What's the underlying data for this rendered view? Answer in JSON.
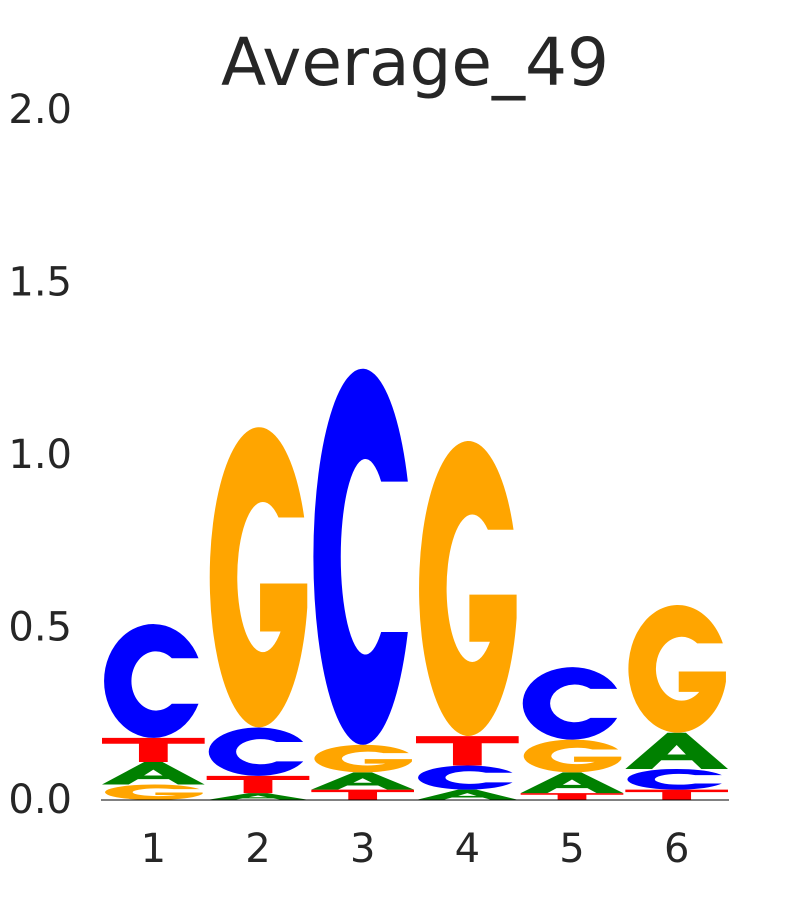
{
  "chart_data": {
    "type": "sequence-logo",
    "title": "Average_49",
    "xlabel": "",
    "ylabel": "",
    "ylim": [
      0,
      2.0
    ],
    "yticks": [
      "0.0",
      "0.5",
      "1.0",
      "1.5",
      "2.0"
    ],
    "positions": [
      "1",
      "2",
      "3",
      "4",
      "5",
      "6"
    ],
    "colors": {
      "A": "#008000",
      "C": "#0000ff",
      "G": "#ffa500",
      "T": "#ff0000"
    },
    "grid": false,
    "columns": [
      [
        {
          "letter": "G",
          "height": 0.045
        },
        {
          "letter": "A",
          "height": 0.065
        },
        {
          "letter": "T",
          "height": 0.07
        },
        {
          "letter": "C",
          "height": 0.33
        }
      ],
      [
        {
          "letter": "A",
          "height": 0.02
        },
        {
          "letter": "T",
          "height": 0.05
        },
        {
          "letter": "C",
          "height": 0.14
        },
        {
          "letter": "G",
          "height": 0.87
        }
      ],
      [
        {
          "letter": "T",
          "height": 0.03
        },
        {
          "letter": "A",
          "height": 0.05
        },
        {
          "letter": "G",
          "height": 0.08
        },
        {
          "letter": "C",
          "height": 1.09
        }
      ],
      [
        {
          "letter": "A",
          "height": 0.03
        },
        {
          "letter": "C",
          "height": 0.07
        },
        {
          "letter": "T",
          "height": 0.085
        },
        {
          "letter": "G",
          "height": 0.855
        }
      ],
      [
        {
          "letter": "T",
          "height": 0.02
        },
        {
          "letter": "A",
          "height": 0.06
        },
        {
          "letter": "G",
          "height": 0.095
        },
        {
          "letter": "C",
          "height": 0.21
        }
      ],
      [
        {
          "letter": "T",
          "height": 0.03
        },
        {
          "letter": "C",
          "height": 0.06
        },
        {
          "letter": "A",
          "height": 0.105
        },
        {
          "letter": "G",
          "height": 0.37
        }
      ]
    ]
  }
}
